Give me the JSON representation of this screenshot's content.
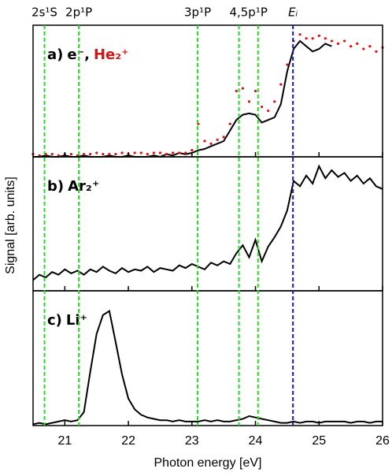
{
  "figure": {
    "xlabel": "Photon energy [eV]",
    "ylabel": "Signal [arb. units]",
    "xlim": [
      20.5,
      26
    ],
    "xticks": [
      21,
      22,
      23,
      24,
      25,
      26
    ],
    "levels": [
      {
        "label": "2s¹S",
        "x": [
          20.68
        ],
        "color": "#22dd22"
      },
      {
        "label": "2p¹P",
        "x": [
          21.22
        ],
        "color": "#22dd22"
      },
      {
        "label": "3p¹P",
        "x": [
          23.09
        ],
        "color": "#22dd22"
      },
      {
        "label": "4,5p¹P",
        "x": [
          23.74,
          24.04
        ],
        "color": "#22dd22"
      },
      {
        "label": "Eᵢ",
        "x": [
          24.59
        ],
        "color": "#1a1aaa"
      }
    ]
  },
  "chart_data": [
    {
      "type": "line",
      "label": "a)",
      "separator": ",",
      "ylim": [
        0,
        100
      ],
      "x": [
        20.5,
        20.6,
        20.7,
        20.8,
        20.9,
        21.0,
        21.1,
        21.2,
        21.3,
        21.4,
        21.5,
        21.6,
        21.7,
        21.8,
        21.9,
        22.0,
        22.1,
        22.2,
        22.3,
        22.4,
        22.5,
        22.6,
        22.7,
        22.8,
        22.9,
        23.0,
        23.1,
        23.2,
        23.3,
        23.4,
        23.5,
        23.6,
        23.7,
        23.8,
        23.9,
        24.0,
        24.1,
        24.2,
        24.3,
        24.4,
        24.5,
        24.6,
        24.7,
        24.8,
        24.9,
        25.0,
        25.1,
        25.2,
        25.3,
        25.4,
        25.5,
        25.6,
        25.7,
        25.8,
        25.9,
        26.0
      ],
      "series": [
        {
          "name": "e⁻",
          "color": "#000000",
          "style": "solid",
          "values": [
            0,
            0,
            1,
            0,
            0,
            1,
            0,
            0,
            1,
            0,
            0,
            0,
            1,
            0,
            0,
            1,
            0,
            0,
            0,
            1,
            0,
            2,
            1,
            3,
            2,
            3,
            5,
            6,
            8,
            10,
            12,
            20,
            28,
            32,
            33,
            32,
            26,
            28,
            30,
            40,
            65,
            82,
            88,
            84,
            80,
            82,
            86,
            84,
            null,
            null,
            null,
            null,
            null,
            null,
            null,
            null
          ]
        },
        {
          "name": "He₂⁺",
          "color": "#e01010",
          "style": "dotted",
          "values": [
            2,
            1,
            2,
            2,
            1,
            2,
            2,
            1,
            2,
            2,
            3,
            2,
            2,
            2,
            3,
            2,
            3,
            3,
            2,
            3,
            3,
            2,
            3,
            3,
            3,
            5,
            25,
            12,
            10,
            13,
            15,
            25,
            50,
            52,
            42,
            50,
            38,
            35,
            42,
            55,
            70,
            88,
            93,
            90,
            90,
            92,
            90,
            88,
            86,
            88,
            84,
            86,
            82,
            84,
            80,
            83
          ]
        }
      ]
    },
    {
      "type": "line",
      "label": "b)",
      "ylim": [
        0,
        100
      ],
      "x": [
        20.5,
        20.6,
        20.7,
        20.8,
        20.9,
        21.0,
        21.1,
        21.2,
        21.3,
        21.4,
        21.5,
        21.6,
        21.7,
        21.8,
        21.9,
        22.0,
        22.1,
        22.2,
        22.3,
        22.4,
        22.5,
        22.6,
        22.7,
        22.8,
        22.9,
        23.0,
        23.1,
        23.2,
        23.3,
        23.4,
        23.5,
        23.6,
        23.7,
        23.8,
        23.9,
        24.0,
        24.1,
        24.2,
        24.3,
        24.4,
        24.5,
        24.6,
        24.7,
        24.8,
        24.9,
        25.0,
        25.1,
        25.2,
        25.3,
        25.4,
        25.5,
        25.6,
        25.7,
        25.8,
        25.9,
        26.0
      ],
      "series": [
        {
          "name": "Ar₂⁺",
          "color": "#000000",
          "style": "solid",
          "values": [
            8,
            12,
            10,
            14,
            12,
            16,
            13,
            15,
            12,
            16,
            14,
            18,
            15,
            13,
            17,
            14,
            16,
            15,
            18,
            14,
            17,
            16,
            15,
            19,
            17,
            20,
            18,
            16,
            21,
            19,
            22,
            20,
            28,
            34,
            25,
            38,
            22,
            33,
            40,
            48,
            60,
            82,
            78,
            86,
            80,
            93,
            84,
            90,
            85,
            88,
            82,
            86,
            80,
            84,
            78,
            76
          ]
        }
      ]
    },
    {
      "type": "line",
      "label": "c)",
      "ylim": [
        0,
        100
      ],
      "x": [
        20.5,
        20.6,
        20.7,
        20.8,
        20.9,
        21.0,
        21.1,
        21.2,
        21.3,
        21.4,
        21.5,
        21.6,
        21.7,
        21.8,
        21.9,
        22.0,
        22.1,
        22.2,
        22.3,
        22.4,
        22.5,
        22.6,
        22.7,
        22.8,
        22.9,
        23.0,
        23.1,
        23.2,
        23.3,
        23.4,
        23.5,
        23.6,
        23.7,
        23.8,
        23.9,
        24.0,
        24.1,
        24.2,
        24.3,
        24.4,
        24.5,
        24.6,
        24.7,
        24.8,
        24.9,
        25.0,
        25.1,
        25.2,
        25.3,
        25.4,
        25.5,
        25.6,
        25.7,
        25.8,
        25.9,
        26.0
      ],
      "series": [
        {
          "name": "Li⁺",
          "color": "#000000",
          "style": "solid",
          "values": [
            1,
            2,
            1,
            2,
            3,
            4,
            3,
            4,
            10,
            40,
            68,
            82,
            85,
            62,
            38,
            20,
            12,
            8,
            6,
            5,
            4,
            4,
            3,
            4,
            3,
            3,
            3,
            4,
            3,
            4,
            3,
            3,
            4,
            5,
            7,
            6,
            5,
            4,
            3,
            2,
            2,
            3,
            2,
            3,
            3,
            2,
            3,
            3,
            3,
            3,
            2,
            3,
            3,
            2,
            3,
            3
          ]
        }
      ]
    }
  ]
}
